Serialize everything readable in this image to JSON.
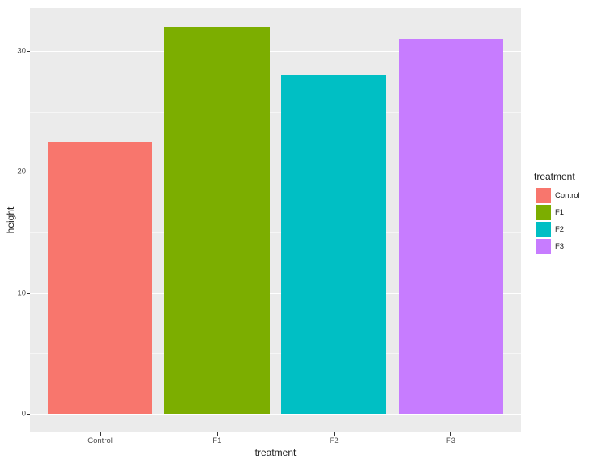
{
  "chart_data": {
    "type": "bar",
    "title": "",
    "xlabel": "treatment",
    "ylabel": "height",
    "categories": [
      "Control",
      "F1",
      "F2",
      "F3"
    ],
    "values": [
      22.5,
      32,
      28,
      31
    ],
    "colors": [
      "#F8766D",
      "#7CAE00",
      "#00BFC4",
      "#C77CFF"
    ],
    "yticks": [
      0,
      10,
      20,
      30
    ],
    "yticks_minor": [
      5,
      15,
      25
    ],
    "ylim": [
      0,
      32
    ],
    "grid": true,
    "legend": {
      "title": "treatment",
      "position": "right",
      "entries": [
        "Control",
        "F1",
        "F2",
        "F3"
      ]
    },
    "theme": {
      "panel_background": "#EBEBEB",
      "figure_background": "#FFFFFF",
      "gridline_color": "#FFFFFF",
      "axis_text_color": "#4D4D4D",
      "title_color": "#1A1A1A"
    }
  }
}
